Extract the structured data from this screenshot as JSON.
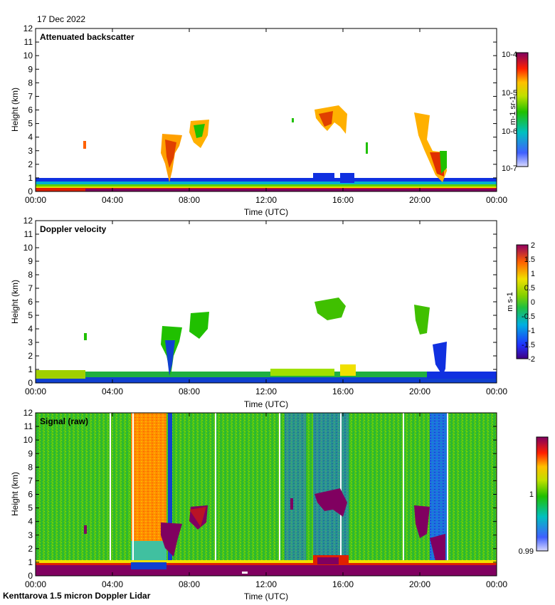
{
  "header": {
    "date": "17 Dec 2022"
  },
  "footer": {
    "station": "Kenttarova 1.5 micron Doppler Lidar"
  },
  "axes": {
    "xlabel": "Time (UTC)",
    "ylabel": "Height (km)",
    "xticks": [
      "00:00",
      "04:00",
      "08:00",
      "12:00",
      "16:00",
      "20:00",
      "00:00"
    ],
    "yticks": [
      "0",
      "1",
      "2",
      "3",
      "4",
      "5",
      "6",
      "7",
      "8",
      "9",
      "10",
      "11",
      "12"
    ]
  },
  "colors": {
    "purple": "#800060",
    "red": "#e00000",
    "orange": "#ff8000",
    "yellow": "#f0e000",
    "lime": "#a0e000",
    "green": "#20c000",
    "cyan": "#00c0c0",
    "blue": "#1030e0",
    "lightblue": "#b0c0ff"
  },
  "chart_data": [
    {
      "type": "heatmap",
      "title": "Attenuated backscatter",
      "xlabel": "Time (UTC)",
      "ylabel": "Height (km)",
      "xlim": [
        0,
        24
      ],
      "ylim": [
        0,
        12
      ],
      "colorbar": {
        "label": "m-1 sr-1",
        "scale": "log",
        "ticks": [
          "10-4",
          "10-5",
          "10-6",
          "10-7"
        ]
      },
      "features": [
        {
          "name": "boundary layer",
          "t": [
            0,
            24
          ],
          "h": [
            0,
            0.8
          ]
        },
        {
          "name": "cloud",
          "t": [
            2.4,
            2.6
          ],
          "h": [
            3.1,
            3.7
          ]
        },
        {
          "name": "cloud",
          "t": [
            6.5,
            7.8
          ],
          "h": [
            0.5,
            4.3
          ]
        },
        {
          "name": "cloud",
          "t": [
            8.0,
            9.0
          ],
          "h": [
            3.2,
            5.3
          ]
        },
        {
          "name": "cloud",
          "t": [
            13.3,
            13.4
          ],
          "h": [
            5.3,
            5.6
          ]
        },
        {
          "name": "cloud",
          "t": [
            14.5,
            16.3
          ],
          "h": [
            4.3,
            6.4
          ]
        },
        {
          "name": "cloud",
          "t": [
            19.8,
            21.4
          ],
          "h": [
            1.0,
            6.0
          ]
        }
      ]
    },
    {
      "type": "heatmap",
      "title": "Doppler velocity",
      "xlabel": "Time (UTC)",
      "ylabel": "Height (km)",
      "xlim": [
        0,
        24
      ],
      "ylim": [
        0,
        12
      ],
      "colorbar": {
        "label": "m s-1",
        "scale": "linear",
        "range": [
          -2,
          2
        ],
        "ticks": [
          "2",
          "1.5",
          "1",
          "0.5",
          "0",
          "-0.5",
          "-1",
          "-1.5",
          "-2"
        ]
      }
    },
    {
      "type": "heatmap",
      "title": "Signal (raw)",
      "xlabel": "Time (UTC)",
      "ylabel": "Height (km)",
      "xlim": [
        0,
        24
      ],
      "ylim": [
        0,
        12
      ],
      "colorbar": {
        "label": "",
        "scale": "linear",
        "range": [
          0.99,
          1.01
        ],
        "ticks": [
          "1",
          "0.99"
        ]
      },
      "features": [
        {
          "name": "high signal column",
          "t": [
            4.9,
            6.7
          ],
          "h": [
            0.5,
            12
          ]
        },
        {
          "name": "low signal column",
          "t": [
            20.3,
            21.2
          ],
          "h": [
            0,
            12
          ]
        }
      ]
    }
  ]
}
